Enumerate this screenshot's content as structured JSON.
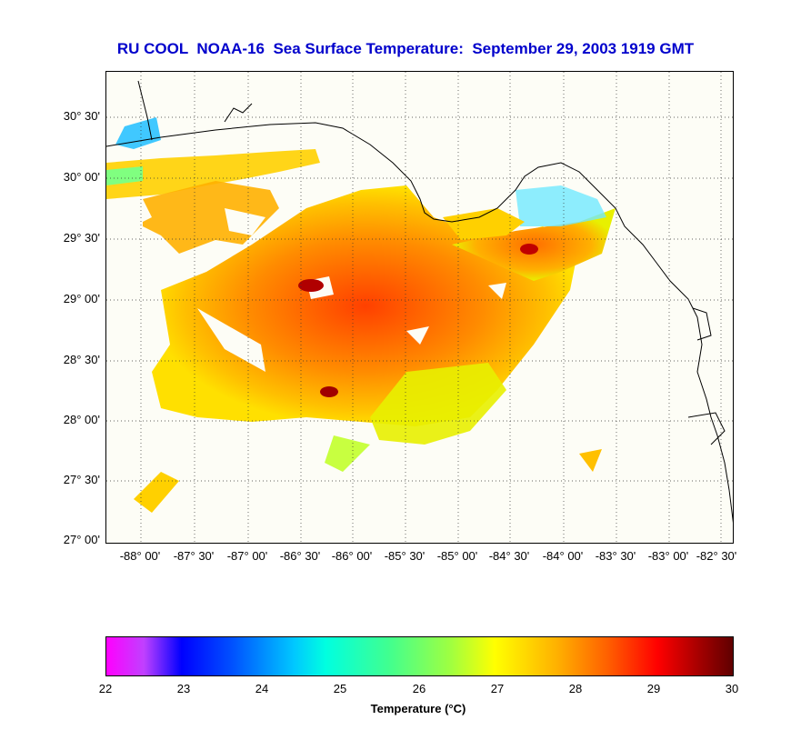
{
  "title": "RU COOL  NOAA-16  Sea Surface Temperature:  September 29, 2003 1919 GMT",
  "lat_labels": [
    "30° 30'",
    "30° 00'",
    "29° 30'",
    "29° 00'",
    "28° 30'",
    "28° 00'",
    "27° 30'",
    "27° 00'"
  ],
  "lon_labels": [
    "-88° 00'",
    "-87° 30'",
    "-87° 00'",
    "-86° 30'",
    "-86° 00'",
    "-85° 30'",
    "-85° 00'",
    "-84° 30'",
    "-84° 00'",
    "-83° 30'",
    "-83° 00'",
    "-82° 30'"
  ],
  "colorbar": {
    "ticks": [
      "22",
      "23",
      "24",
      "25",
      "26",
      "27",
      "28",
      "29",
      "30"
    ],
    "label": "Temperature (°C)"
  },
  "colors": {
    "title": "#0000cc",
    "land": "#fdfdf6"
  }
}
